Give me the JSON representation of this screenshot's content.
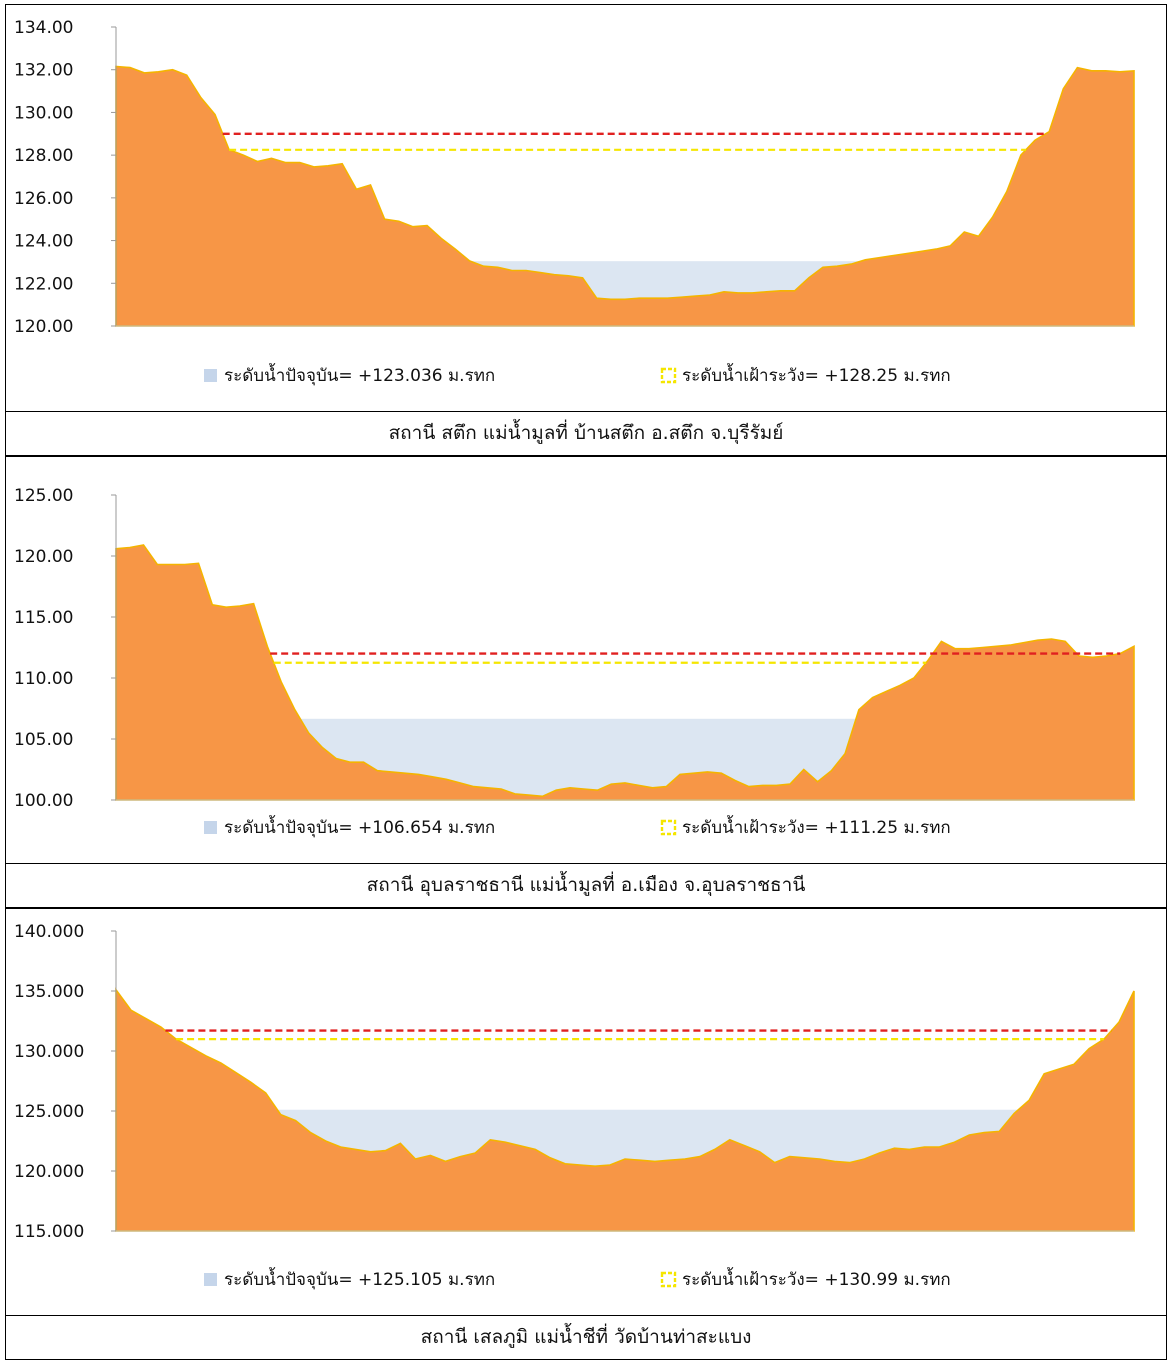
{
  "colors": {
    "ground": "#F79646",
    "ground_edge": "#F4B400",
    "water": "#DCE6F2",
    "water_swatch": "#C5D5EA",
    "warning_line": "#E02020",
    "alert_line": "#F5E600"
  },
  "chart_data": [
    {
      "type": "area",
      "caption": "สถานี สตึก แม่น้ำมูลที่ บ้านสตึก อ.สตึก จ.บุรีรัมย์",
      "ylim": [
        120,
        134
      ],
      "yticks": [
        "120.00",
        "122.00",
        "124.00",
        "126.00",
        "128.00",
        "130.00",
        "132.00",
        "134.00"
      ],
      "ytick_values": [
        120,
        122,
        124,
        126,
        128,
        130,
        132,
        134
      ],
      "water_level": 123.036,
      "alert_level": 128.25,
      "bank_level": 129.0,
      "legend": {
        "water_label": "ระดับน้ำปัจจุบัน= +123.036 ม.รทก",
        "alert_label": "ระดับน้ำเฝ้าระวัง= +128.25 ม.รทก"
      },
      "profile": [
        132.15,
        132.1,
        131.85,
        131.9,
        132.0,
        131.75,
        130.7,
        129.9,
        128.25,
        128.0,
        127.7,
        127.85,
        127.65,
        127.65,
        127.45,
        127.5,
        127.6,
        126.4,
        126.6,
        125.0,
        124.9,
        124.65,
        124.7,
        124.1,
        123.6,
        123.05,
        122.8,
        122.75,
        122.6,
        122.6,
        122.5,
        122.4,
        122.35,
        122.25,
        121.3,
        121.25,
        121.25,
        121.3,
        121.3,
        121.3,
        121.35,
        121.4,
        121.45,
        121.6,
        121.55,
        121.55,
        121.6,
        121.65,
        121.65,
        122.25,
        122.75,
        122.8,
        122.9,
        123.1,
        123.2,
        123.3,
        123.4,
        123.5,
        123.6,
        123.75,
        124.4,
        124.2,
        125.1,
        126.3,
        128.0,
        128.7,
        129.1,
        131.1,
        132.1,
        131.95,
        131.95,
        131.9,
        131.95
      ]
    },
    {
      "type": "area",
      "caption": "สถานี อุบลราชธานี แม่น้ำมูลที่ อ.เมือง จ.อุบลราชธานี",
      "ylim": [
        100,
        125
      ],
      "yticks": [
        "100.00",
        "105.00",
        "110.00",
        "115.00",
        "120.00",
        "125.00"
      ],
      "ytick_values": [
        100,
        105,
        110,
        115,
        120,
        125
      ],
      "water_level": 106.654,
      "alert_level": 111.25,
      "bank_level": 112.0,
      "legend": {
        "water_label": "ระดับน้ำปัจจุบัน= +106.654 ม.รทก",
        "alert_label": "ระดับน้ำเฝ้าระวัง= +111.25 ม.รทก"
      },
      "profile": [
        120.6,
        120.7,
        120.9,
        119.3,
        119.3,
        119.3,
        119.4,
        116.0,
        115.8,
        115.9,
        116.1,
        112.6,
        109.7,
        107.4,
        105.5,
        104.3,
        103.4,
        103.1,
        103.1,
        102.4,
        102.3,
        102.2,
        102.1,
        101.9,
        101.7,
        101.4,
        101.1,
        101.0,
        100.9,
        100.5,
        100.4,
        100.3,
        100.8,
        101.0,
        100.9,
        100.8,
        101.3,
        101.4,
        101.2,
        101.0,
        101.1,
        102.1,
        102.2,
        102.3,
        102.2,
        101.6,
        101.1,
        101.2,
        101.2,
        101.3,
        102.5,
        101.5,
        102.4,
        103.8,
        107.4,
        108.4,
        108.9,
        109.4,
        110.0,
        111.4,
        113.0,
        112.4,
        112.4,
        112.5,
        112.6,
        112.7,
        112.9,
        113.1,
        113.2,
        113.0,
        111.8,
        111.7,
        111.8,
        112.0,
        112.6
      ]
    },
    {
      "type": "area",
      "caption": "สถานี เสลภูมิ แม่น้ำชีที่ วัดบ้านท่าสะแบง",
      "ylim": [
        115,
        140
      ],
      "yticks": [
        "115.000",
        "120.000",
        "125.000",
        "130.000",
        "135.000",
        "140.000"
      ],
      "ytick_values": [
        115,
        120,
        125,
        130,
        135,
        140
      ],
      "water_level": 125.105,
      "alert_level": 130.99,
      "bank_level": 131.7,
      "legend": {
        "water_label": "ระดับน้ำปัจจุบัน= +125.105 ม.รทก",
        "alert_label": "ระดับน้ำเฝ้าระวัง= +130.99 ม.รทก"
      },
      "profile": [
        135.1,
        133.4,
        132.7,
        132.0,
        131.0,
        130.3,
        129.6,
        129.0,
        128.2,
        127.4,
        126.5,
        124.7,
        124.2,
        123.2,
        122.5,
        122.0,
        121.8,
        121.6,
        121.7,
        122.3,
        121.0,
        121.3,
        120.8,
        121.2,
        121.5,
        122.6,
        122.4,
        122.1,
        121.8,
        121.1,
        120.6,
        120.5,
        120.4,
        120.5,
        121.0,
        120.9,
        120.8,
        120.9,
        121.0,
        121.2,
        121.8,
        122.6,
        122.1,
        121.6,
        120.7,
        121.2,
        121.1,
        121.0,
        120.8,
        120.7,
        121.0,
        121.5,
        121.9,
        121.8,
        122.0,
        122.0,
        122.4,
        123.0,
        123.2,
        123.3,
        124.8,
        125.9,
        128.1,
        128.5,
        128.9,
        130.2,
        131.0,
        132.4,
        135.0
      ]
    }
  ]
}
